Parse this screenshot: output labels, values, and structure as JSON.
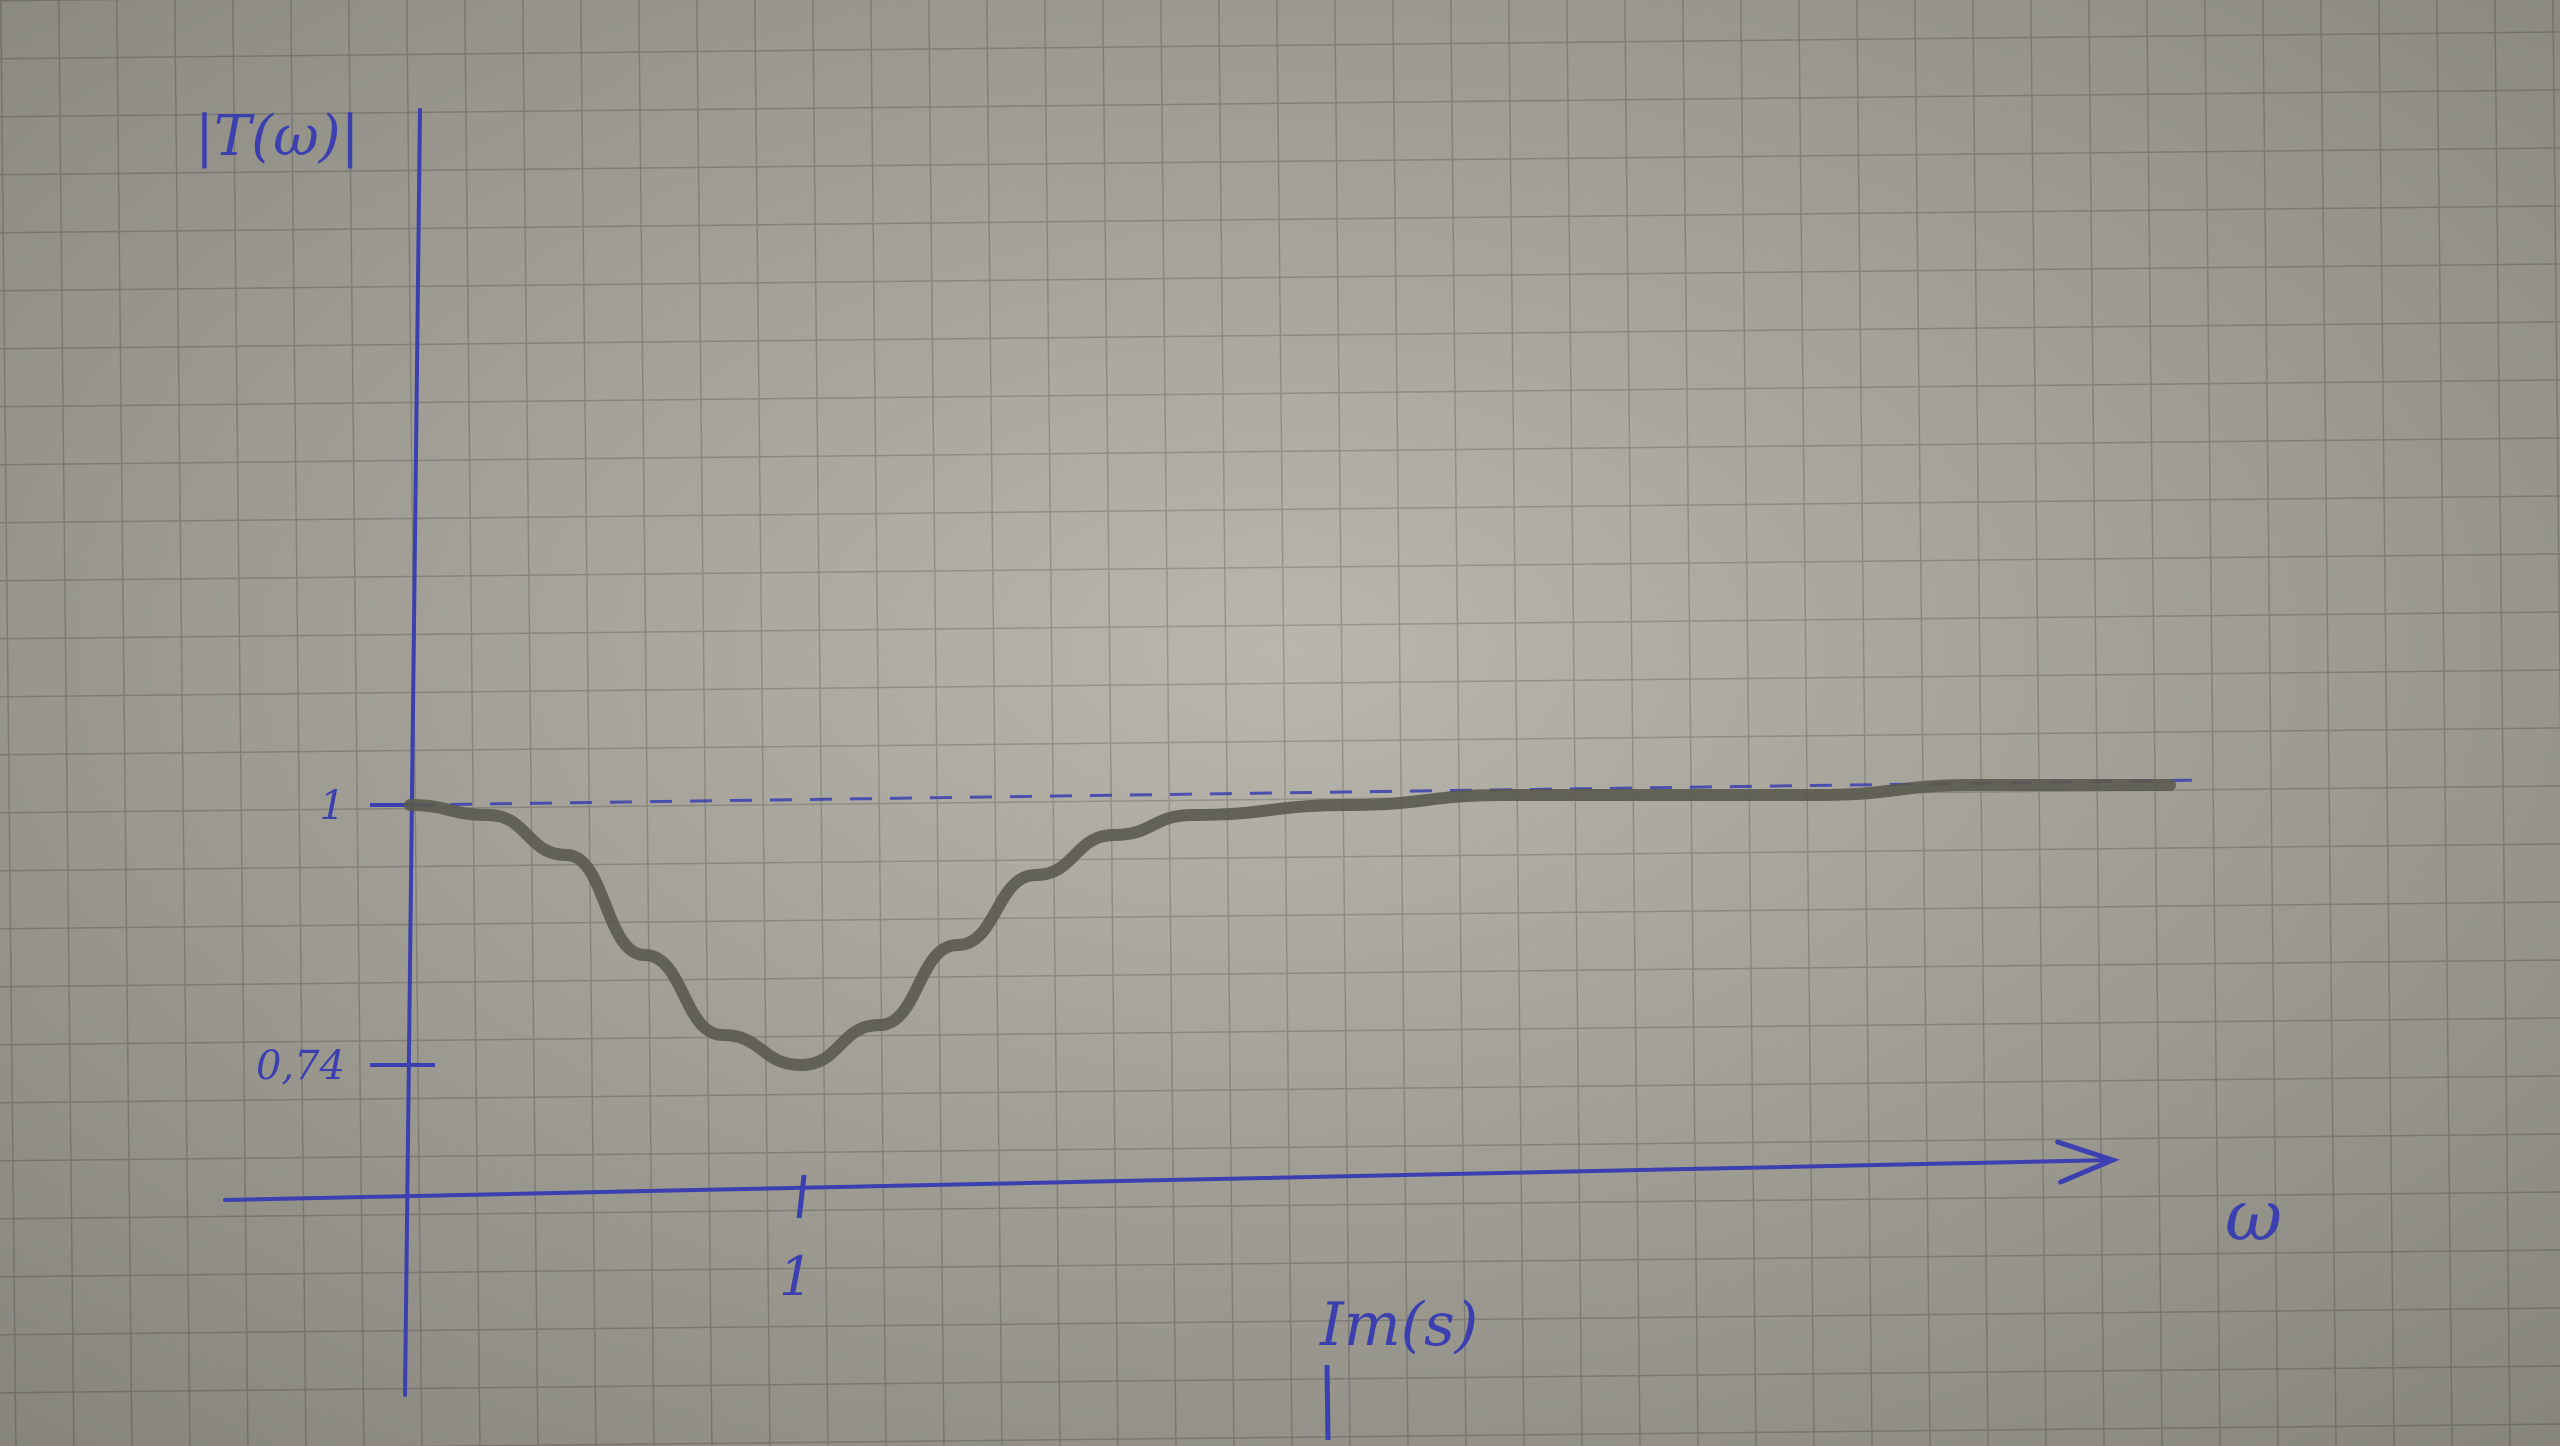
{
  "chart_data": {
    "type": "line",
    "ylabel": "|T(ω)|",
    "xlabel": "ω",
    "annotation": "Im(s)",
    "y_ticks": [
      {
        "value": 1,
        "label": "1"
      },
      {
        "value": 0.74,
        "label": "0,74"
      }
    ],
    "x_ticks": [
      {
        "value": 1,
        "label": "1"
      }
    ],
    "reference_line": {
      "y": 1,
      "style": "dashed"
    },
    "xlim": [
      0,
      4.5
    ],
    "ylim": [
      0.61,
      1.7
    ],
    "series": [
      {
        "x": [
          0,
          0.2,
          0.4,
          0.6,
          0.8,
          1.0,
          1.2,
          1.4,
          1.6,
          1.8,
          2.0,
          2.4,
          2.8,
          3.2,
          3.6,
          4.0,
          4.5
        ],
        "y": [
          1.0,
          0.99,
          0.95,
          0.85,
          0.77,
          0.74,
          0.78,
          0.86,
          0.93,
          0.97,
          0.99,
          1.0,
          1.01,
          1.01,
          1.01,
          1.02,
          1.02
        ]
      }
    ],
    "colors": {
      "paper": "#b9b7ac",
      "grid": "#8d8b82",
      "ink": "#3b3fb0",
      "pencil": "#5b5a4e"
    }
  }
}
